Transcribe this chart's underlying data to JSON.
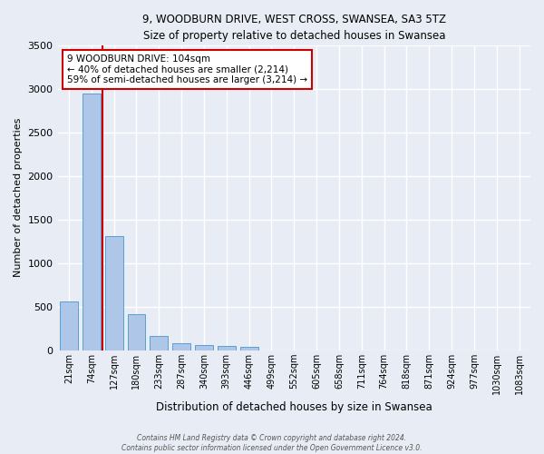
{
  "title1": "9, WOODBURN DRIVE, WEST CROSS, SWANSEA, SA3 5TZ",
  "title2": "Size of property relative to detached houses in Swansea",
  "xlabel": "Distribution of detached houses by size in Swansea",
  "ylabel": "Number of detached properties",
  "categories": [
    "21sqm",
    "74sqm",
    "127sqm",
    "180sqm",
    "233sqm",
    "287sqm",
    "340sqm",
    "393sqm",
    "446sqm",
    "499sqm",
    "552sqm",
    "605sqm",
    "658sqm",
    "711sqm",
    "764sqm",
    "818sqm",
    "871sqm",
    "924sqm",
    "977sqm",
    "1030sqm",
    "1083sqm"
  ],
  "values": [
    560,
    2950,
    1310,
    410,
    160,
    80,
    60,
    50,
    40,
    0,
    0,
    0,
    0,
    0,
    0,
    0,
    0,
    0,
    0,
    0,
    0
  ],
  "bar_color": "#aec6e8",
  "bar_edge_color": "#5a9fd4",
  "vline_color": "#cc0000",
  "vline_x_index": 1.5,
  "annotation_text": "9 WOODBURN DRIVE: 104sqm\n← 40% of detached houses are smaller (2,214)\n59% of semi-detached houses are larger (3,214) →",
  "annotation_box_edgecolor": "#cc0000",
  "annotation_box_facecolor": "#ffffff",
  "ylim": [
    0,
    3500
  ],
  "yticks": [
    0,
    500,
    1000,
    1500,
    2000,
    2500,
    3000,
    3500
  ],
  "background_color": "#e8edf5",
  "grid_color": "#ffffff",
  "footer": "Contains HM Land Registry data © Crown copyright and database right 2024.\nContains public sector information licensed under the Open Government Licence v3.0."
}
